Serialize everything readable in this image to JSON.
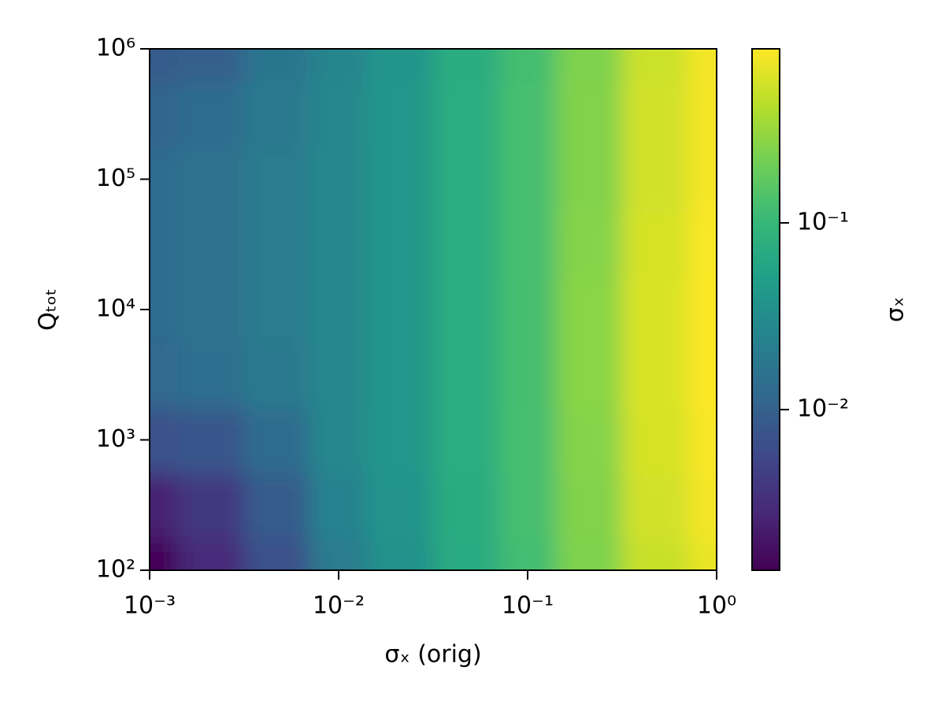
{
  "chart_data": {
    "type": "heatmap",
    "x_label": "σₓ (orig)",
    "y_label": "Qₜₒₜ",
    "colorbar_label": "σₓ",
    "x": [
      0.001,
      0.002,
      0.005,
      0.01,
      0.02,
      0.05,
      0.1,
      0.2,
      0.5,
      1
    ],
    "y": [
      100,
      300,
      1000,
      3000,
      10000,
      30000,
      100000,
      300000,
      1000000
    ],
    "z": [
      [
        0.0015,
        0.003,
        0.007,
        0.02,
        0.035,
        0.07,
        0.12,
        0.24,
        0.5,
        0.7
      ],
      [
        0.0025,
        0.004,
        0.009,
        0.024,
        0.038,
        0.072,
        0.124,
        0.25,
        0.55,
        0.78
      ],
      [
        0.007,
        0.008,
        0.013,
        0.027,
        0.04,
        0.075,
        0.124,
        0.26,
        0.58,
        0.82
      ],
      [
        0.012,
        0.014,
        0.019,
        0.028,
        0.04,
        0.075,
        0.126,
        0.27,
        0.6,
        0.86
      ],
      [
        0.013,
        0.015,
        0.02,
        0.028,
        0.04,
        0.075,
        0.126,
        0.27,
        0.6,
        0.85
      ],
      [
        0.013,
        0.015,
        0.02,
        0.028,
        0.04,
        0.075,
        0.124,
        0.26,
        0.58,
        0.83
      ],
      [
        0.013,
        0.015,
        0.02,
        0.028,
        0.04,
        0.075,
        0.124,
        0.25,
        0.55,
        0.8
      ],
      [
        0.011,
        0.013,
        0.019,
        0.027,
        0.04,
        0.075,
        0.124,
        0.25,
        0.55,
        0.8
      ],
      [
        0.009,
        0.01,
        0.017,
        0.026,
        0.039,
        0.074,
        0.122,
        0.24,
        0.52,
        0.78
      ]
    ],
    "xlim": [
      0.001,
      1
    ],
    "ylim": [
      100,
      1000000
    ],
    "zlim": [
      0.00138,
      0.855
    ],
    "xticks": [
      {
        "value": 0.001,
        "label": "10⁻³"
      },
      {
        "value": 0.01,
        "label": "10⁻²"
      },
      {
        "value": 0.1,
        "label": "10⁻¹"
      },
      {
        "value": 1,
        "label": "10⁰"
      }
    ],
    "yticks": [
      {
        "value": 100,
        "label": "10²"
      },
      {
        "value": 1000,
        "label": "10³"
      },
      {
        "value": 10000,
        "label": "10⁴"
      },
      {
        "value": 100000,
        "label": "10⁵"
      },
      {
        "value": 1000000,
        "label": "10⁶"
      }
    ],
    "zticks": [
      {
        "value": 0.01,
        "label": "10⁻²"
      },
      {
        "value": 0.1,
        "label": "10⁻¹"
      }
    ],
    "xscale": "log",
    "yscale": "log",
    "zscale": "log",
    "colormap": [
      "#440154",
      "#482878",
      "#3e4989",
      "#31688e",
      "#26828e",
      "#1f9e89",
      "#35b779",
      "#6ece58",
      "#b5de2b",
      "#fde725"
    ]
  }
}
